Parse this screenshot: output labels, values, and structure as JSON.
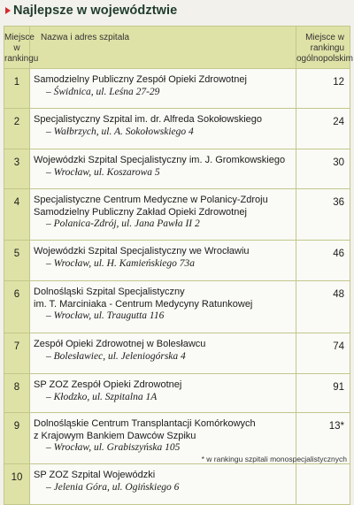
{
  "title": "Najlepsze w województwie",
  "headers": {
    "rank": [
      "Miejsce",
      "w rankingu"
    ],
    "name": "Nazwa i adres szpitala",
    "national": [
      "Miejsce w rankingu",
      "ogólnopolskim"
    ]
  },
  "rows": [
    {
      "rank": "1",
      "lines": [
        "Samodzielny Publiczny Zespół Opieki Zdrowotnej"
      ],
      "address": "– Świdnica, ul. Leśna 27-29",
      "national": "12"
    },
    {
      "rank": "2",
      "lines": [
        "Specjalistyczny Szpital im. dr. Alfreda Sokołowskiego"
      ],
      "address": "– Wałbrzych, ul. A. Sokołowskiego 4",
      "national": "24"
    },
    {
      "rank": "3",
      "lines": [
        "Wojewódzki Szpital Specjalistyczny im. J. Gromkowskiego"
      ],
      "address": "– Wrocław, ul. Koszarowa 5",
      "national": "30"
    },
    {
      "rank": "4",
      "lines": [
        "Specjalistyczne Centrum Medyczne w Polanicy-Zdroju",
        "Samodzielny Publiczny Zakład Opieki Zdrowotnej"
      ],
      "address": "– Polanica-Zdrój, ul. Jana Pawła II 2",
      "national": "36"
    },
    {
      "rank": "5",
      "lines": [
        "Wojewódzki Szpital Specjalistyczny we Wrocławiu"
      ],
      "address": "– Wrocław, ul. H. Kamieńskiego 73a",
      "national": "46"
    },
    {
      "rank": "6",
      "lines": [
        "Dolnośląski Szpital Specjalistyczny",
        "im. T. Marciniaka - Centrum Medycyny Ratunkowej"
      ],
      "address": "– Wrocław, ul. Traugutta 116",
      "national": "48"
    },
    {
      "rank": "7",
      "lines": [
        "Zespół Opieki Zdrowotnej w Bolesławcu"
      ],
      "address": "– Bolesławiec, ul. Jeleniogórska 4",
      "national": "74"
    },
    {
      "rank": "8",
      "lines": [
        "SP ZOZ Zespół Opieki Zdrowotnej"
      ],
      "address": "– Kłodzko, ul. Szpitalna 1A",
      "national": "91"
    },
    {
      "rank": "9",
      "lines": [
        "Dolnośląskie Centrum Transplantacji Komórkowych",
        "z Krajowym Bankiem Dawców Szpiku"
      ],
      "address": "– Wrocław, ul. Grabiszyńska 105",
      "national": "13*"
    },
    {
      "rank": "10",
      "lines": [
        "SP ZOZ Szpital Wojewódzki"
      ],
      "address": "– Jelenia Góra, ul. Ogińskiego 6",
      "national": ""
    }
  ],
  "footnote": "* w rankingu szpitali monospecjalistycznych",
  "colors": {
    "header_bg": "#dfe2a6",
    "arrow": "#d32a2a",
    "title": "#1f3c2c"
  }
}
